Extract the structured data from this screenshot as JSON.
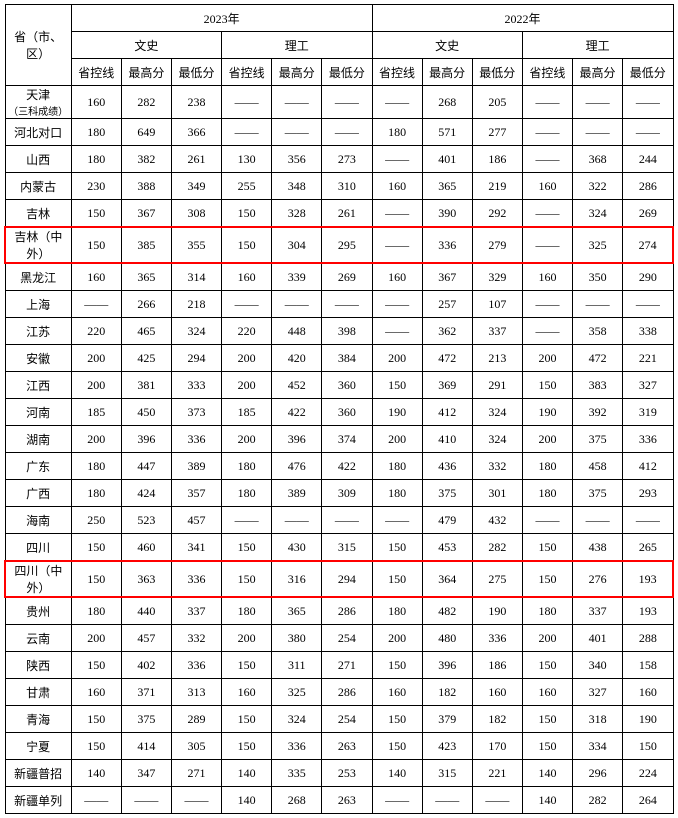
{
  "header": {
    "province_label": "省（市、区）",
    "year_2023": "2023年",
    "year_2022": "2022年",
    "cat_wenshi": "文史",
    "cat_ligong": "理工",
    "col_shengkongxian": "省控线",
    "col_zuigaofen": "最高分",
    "col_zuidifen": "最低分"
  },
  "rows": [
    {
      "province": "天津",
      "subnote": "（三科成绩）",
      "c": [
        "160",
        "282",
        "238",
        "——",
        "——",
        "——",
        "——",
        "268",
        "205",
        "——",
        "——",
        "——"
      ],
      "highlight": false
    },
    {
      "province": "河北对口",
      "c": [
        "180",
        "649",
        "366",
        "——",
        "——",
        "——",
        "180",
        "571",
        "277",
        "——",
        "——",
        "——"
      ],
      "highlight": false
    },
    {
      "province": "山西",
      "c": [
        "180",
        "382",
        "261",
        "130",
        "356",
        "273",
        "——",
        "401",
        "186",
        "——",
        "368",
        "244"
      ],
      "highlight": false
    },
    {
      "province": "内蒙古",
      "c": [
        "230",
        "388",
        "349",
        "255",
        "348",
        "310",
        "160",
        "365",
        "219",
        "160",
        "322",
        "286"
      ],
      "highlight": false
    },
    {
      "province": "吉林",
      "c": [
        "150",
        "367",
        "308",
        "150",
        "328",
        "261",
        "——",
        "390",
        "292",
        "——",
        "324",
        "269"
      ],
      "highlight": false
    },
    {
      "province": "吉林（中外）",
      "c": [
        "150",
        "385",
        "355",
        "150",
        "304",
        "295",
        "——",
        "336",
        "279",
        "——",
        "325",
        "274"
      ],
      "highlight": true
    },
    {
      "province": "黑龙江",
      "c": [
        "160",
        "365",
        "314",
        "160",
        "339",
        "269",
        "160",
        "367",
        "329",
        "160",
        "350",
        "290"
      ],
      "highlight": false
    },
    {
      "province": "上海",
      "c": [
        "——",
        "266",
        "218",
        "——",
        "——",
        "——",
        "——",
        "257",
        "107",
        "——",
        "——",
        "——"
      ],
      "highlight": false
    },
    {
      "province": "江苏",
      "c": [
        "220",
        "465",
        "324",
        "220",
        "448",
        "398",
        "——",
        "362",
        "337",
        "——",
        "358",
        "338"
      ],
      "highlight": false
    },
    {
      "province": "安徽",
      "c": [
        "200",
        "425",
        "294",
        "200",
        "420",
        "384",
        "200",
        "472",
        "213",
        "200",
        "472",
        "221"
      ],
      "highlight": false
    },
    {
      "province": "江西",
      "c": [
        "200",
        "381",
        "333",
        "200",
        "452",
        "360",
        "150",
        "369",
        "291",
        "150",
        "383",
        "327"
      ],
      "highlight": false
    },
    {
      "province": "河南",
      "c": [
        "185",
        "450",
        "373",
        "185",
        "422",
        "360",
        "190",
        "412",
        "324",
        "190",
        "392",
        "319"
      ],
      "highlight": false
    },
    {
      "province": "湖南",
      "c": [
        "200",
        "396",
        "336",
        "200",
        "396",
        "374",
        "200",
        "410",
        "324",
        "200",
        "375",
        "336"
      ],
      "highlight": false
    },
    {
      "province": "广东",
      "c": [
        "180",
        "447",
        "389",
        "180",
        "476",
        "422",
        "180",
        "436",
        "332",
        "180",
        "458",
        "412"
      ],
      "highlight": false
    },
    {
      "province": "广西",
      "c": [
        "180",
        "424",
        "357",
        "180",
        "389",
        "309",
        "180",
        "375",
        "301",
        "180",
        "375",
        "293"
      ],
      "highlight": false
    },
    {
      "province": "海南",
      "c": [
        "250",
        "523",
        "457",
        "——",
        "——",
        "——",
        "——",
        "479",
        "432",
        "——",
        "——",
        "——"
      ],
      "highlight": false
    },
    {
      "province": "四川",
      "c": [
        "150",
        "460",
        "341",
        "150",
        "430",
        "315",
        "150",
        "453",
        "282",
        "150",
        "438",
        "265"
      ],
      "highlight": false
    },
    {
      "province": "四川（中外）",
      "c": [
        "150",
        "363",
        "336",
        "150",
        "316",
        "294",
        "150",
        "364",
        "275",
        "150",
        "276",
        "193"
      ],
      "highlight": true
    },
    {
      "province": "贵州",
      "c": [
        "180",
        "440",
        "337",
        "180",
        "365",
        "286",
        "180",
        "482",
        "190",
        "180",
        "337",
        "193"
      ],
      "highlight": false
    },
    {
      "province": "云南",
      "c": [
        "200",
        "457",
        "332",
        "200",
        "380",
        "254",
        "200",
        "480",
        "336",
        "200",
        "401",
        "288"
      ],
      "highlight": false
    },
    {
      "province": "陕西",
      "c": [
        "150",
        "402",
        "336",
        "150",
        "311",
        "271",
        "150",
        "396",
        "186",
        "150",
        "340",
        "158"
      ],
      "highlight": false
    },
    {
      "province": "甘肃",
      "c": [
        "160",
        "371",
        "313",
        "160",
        "325",
        "286",
        "160",
        "182",
        "160",
        "160",
        "327",
        "160"
      ],
      "highlight": false
    },
    {
      "province": "青海",
      "c": [
        "150",
        "375",
        "289",
        "150",
        "324",
        "254",
        "150",
        "379",
        "182",
        "150",
        "318",
        "190"
      ],
      "highlight": false
    },
    {
      "province": "宁夏",
      "c": [
        "150",
        "414",
        "305",
        "150",
        "336",
        "263",
        "150",
        "423",
        "170",
        "150",
        "334",
        "150"
      ],
      "highlight": false
    },
    {
      "province": "新疆普招",
      "c": [
        "140",
        "347",
        "271",
        "140",
        "335",
        "253",
        "140",
        "315",
        "221",
        "140",
        "296",
        "224"
      ],
      "highlight": false
    },
    {
      "province": "新疆单列",
      "c": [
        "——",
        "——",
        "——",
        "140",
        "268",
        "263",
        "——",
        "——",
        "——",
        "140",
        "282",
        "264"
      ],
      "highlight": false
    }
  ],
  "dash": "——"
}
